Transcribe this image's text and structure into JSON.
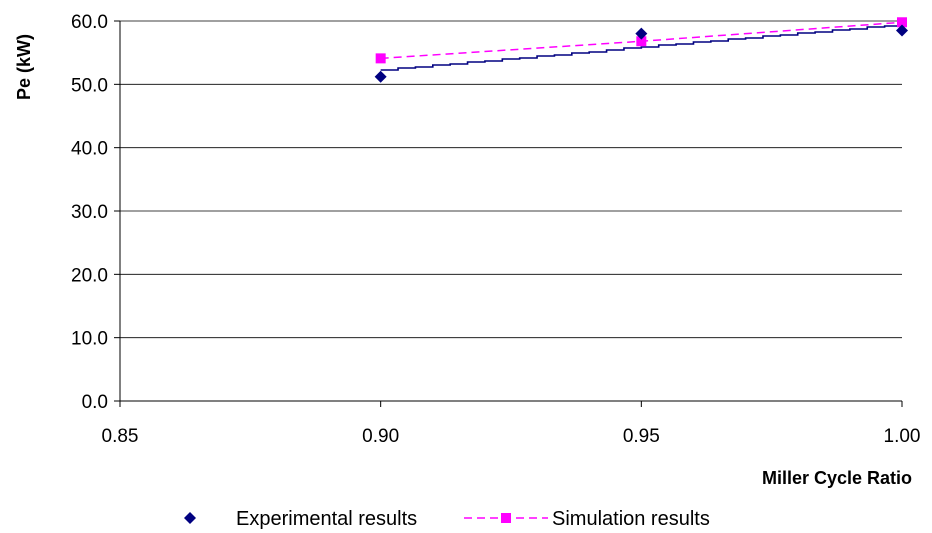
{
  "chart_data": {
    "type": "scatter",
    "xlabel": "Miller Cycle Ratio",
    "ylabel": "Pe (kW)",
    "xlim": [
      0.85,
      1.0
    ],
    "ylim": [
      0,
      60
    ],
    "x_ticks": [
      "0.85",
      "0.90",
      "0.95",
      "1.00"
    ],
    "y_ticks": [
      "0.0",
      "10.0",
      "20.0",
      "30.0",
      "40.0",
      "50.0",
      "60.0"
    ],
    "grid": "horizontal",
    "legend_position": "bottom",
    "series": [
      {
        "name": "Experimental results",
        "marker": "diamond",
        "line": "none",
        "color": "#000080",
        "x": [
          0.9,
          0.95,
          1.0
        ],
        "y": [
          51.2,
          58.0,
          58.5
        ]
      },
      {
        "name": "Simulation results",
        "marker": "square",
        "line": "dashed",
        "color": "#FF00FF",
        "x": [
          0.9,
          0.95,
          1.0
        ],
        "y": [
          54.1,
          56.8,
          59.8
        ]
      }
    ],
    "trendline": {
      "series": "Experimental results",
      "color": "#000080",
      "x": [
        0.9,
        1.0
      ],
      "y": [
        52.3,
        59.5
      ]
    }
  }
}
